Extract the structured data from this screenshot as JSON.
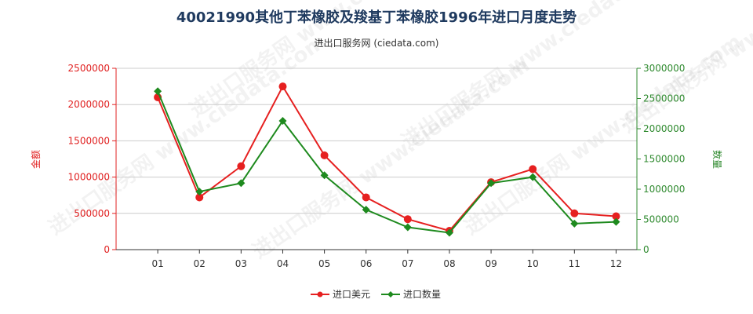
{
  "title": "40021990其他丁苯橡胶及羧基丁苯橡胶1996年进口月度走势",
  "subtitle": "进出口服务网 (ciedata.com)",
  "watermark": "进出口服务网 www.ciedata.com",
  "colors": {
    "left_axis": "#e02020",
    "right_axis": "#2f8a2f",
    "series_usd": "#e62020",
    "series_qty": "#1e8a1e",
    "grid": "#cccccc"
  },
  "chart_data": {
    "type": "line",
    "categories": [
      "01",
      "02",
      "03",
      "04",
      "05",
      "06",
      "07",
      "08",
      "09",
      "10",
      "11",
      "12"
    ],
    "ylabel_left": "金额",
    "ylabel_right": "数量",
    "ylim_left": [
      0,
      2500000
    ],
    "ylim_right": [
      0,
      3000000
    ],
    "yticks_left": [
      "0",
      "500000",
      "1000000",
      "1500000",
      "2000000",
      "2500000"
    ],
    "yticks_right": [
      "0",
      "500000",
      "1000000",
      "1500000",
      "2000000",
      "2500000",
      "3000000"
    ],
    "series": [
      {
        "name": "进口美元",
        "axis": "left",
        "values": [
          2100000,
          720000,
          1150000,
          2250000,
          1300000,
          720000,
          420000,
          260000,
          930000,
          1110000,
          500000,
          460000
        ]
      },
      {
        "name": "进口数量",
        "axis": "right",
        "values": [
          2620000,
          960000,
          1100000,
          2130000,
          1230000,
          660000,
          370000,
          280000,
          1100000,
          1200000,
          430000,
          460000
        ]
      }
    ],
    "legend_position": "bottom-center"
  }
}
